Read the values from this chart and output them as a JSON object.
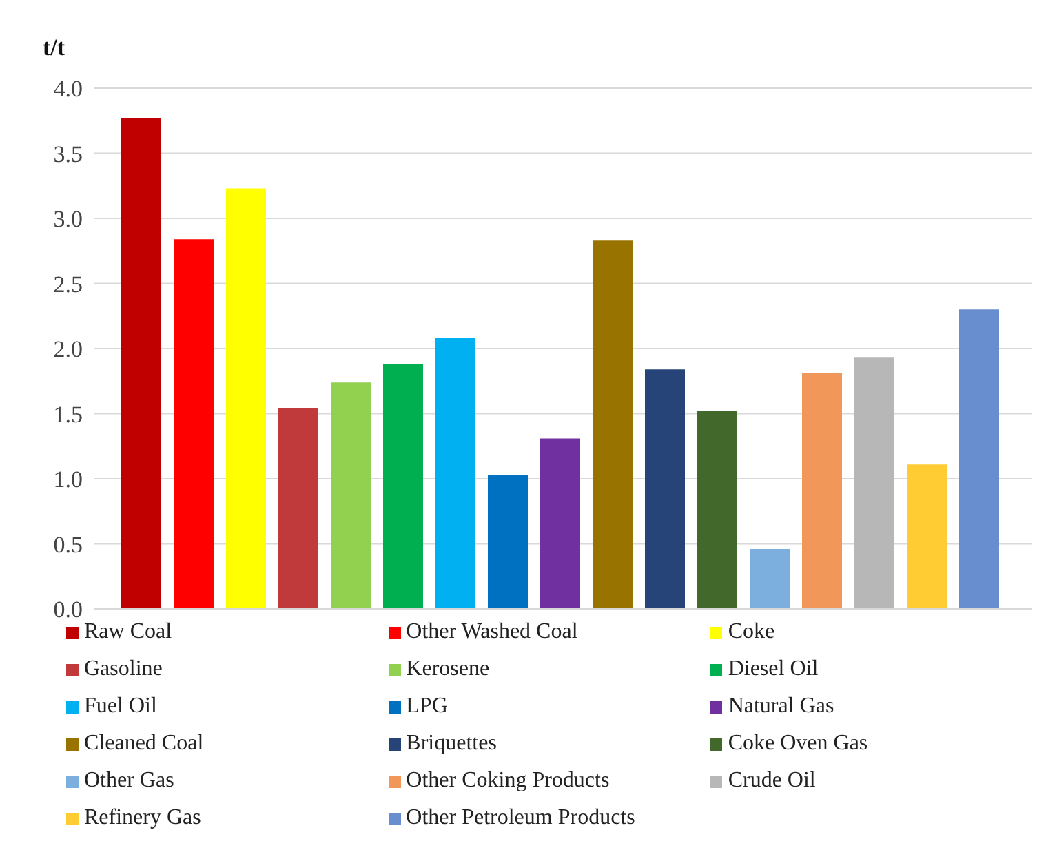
{
  "chart_data": {
    "type": "bar",
    "ylabel": "t/t",
    "categories": [
      null
    ],
    "series": [
      {
        "name": "Raw Coal",
        "color": "#c00000",
        "values": [
          3.77
        ]
      },
      {
        "name": "Other Washed Coal",
        "color": "#ff0000",
        "values": [
          2.84
        ]
      },
      {
        "name": "Coke",
        "color": "#ffff00",
        "values": [
          3.23
        ]
      },
      {
        "name": "Gasoline",
        "color": "#c0393b",
        "values": [
          1.54
        ]
      },
      {
        "name": "Kerosene",
        "color": "#92d050",
        "values": [
          1.74
        ]
      },
      {
        "name": "Diesel Oil",
        "color": "#00b050",
        "values": [
          1.88
        ]
      },
      {
        "name": "Fuel Oil",
        "color": "#00b0f0",
        "values": [
          2.08
        ]
      },
      {
        "name": "LPG",
        "color": "#0070c0",
        "values": [
          1.03
        ]
      },
      {
        "name": "Natural Gas",
        "color": "#7030a0",
        "values": [
          1.31
        ]
      },
      {
        "name": "Cleaned Coal",
        "color": "#997300",
        "values": [
          2.83
        ]
      },
      {
        "name": "Briquettes",
        "color": "#264478",
        "values": [
          1.84
        ]
      },
      {
        "name": "Coke Oven Gas",
        "color": "#43682b",
        "values": [
          1.52
        ]
      },
      {
        "name": "Other Gas",
        "color": "#7cafdd",
        "values": [
          0.46
        ]
      },
      {
        "name": "Other Coking Products",
        "color": "#f1975a",
        "values": [
          1.81
        ]
      },
      {
        "name": "Crude Oil",
        "color": "#b7b7b7",
        "values": [
          1.93
        ]
      },
      {
        "name": "Refinery Gas",
        "color": "#ffcd33",
        "values": [
          1.11
        ]
      },
      {
        "name": "Other Petroleum Products",
        "color": "#698ed0",
        "values": [
          2.3
        ]
      }
    ],
    "ylim": [
      0,
      4
    ],
    "yticks": [
      {
        "value": 0,
        "label": "0.0"
      },
      {
        "value": 0.5,
        "label": "0.5"
      },
      {
        "value": 1,
        "label": "1.0"
      },
      {
        "value": 1.5,
        "label": "1.5"
      },
      {
        "value": 2,
        "label": "2.0"
      },
      {
        "value": 2.5,
        "label": "2.5"
      },
      {
        "value": 3,
        "label": "3.0"
      },
      {
        "value": 3.5,
        "label": "3.5"
      },
      {
        "value": 4,
        "label": "4.0"
      }
    ],
    "grid": "y",
    "legend": "bottom"
  }
}
